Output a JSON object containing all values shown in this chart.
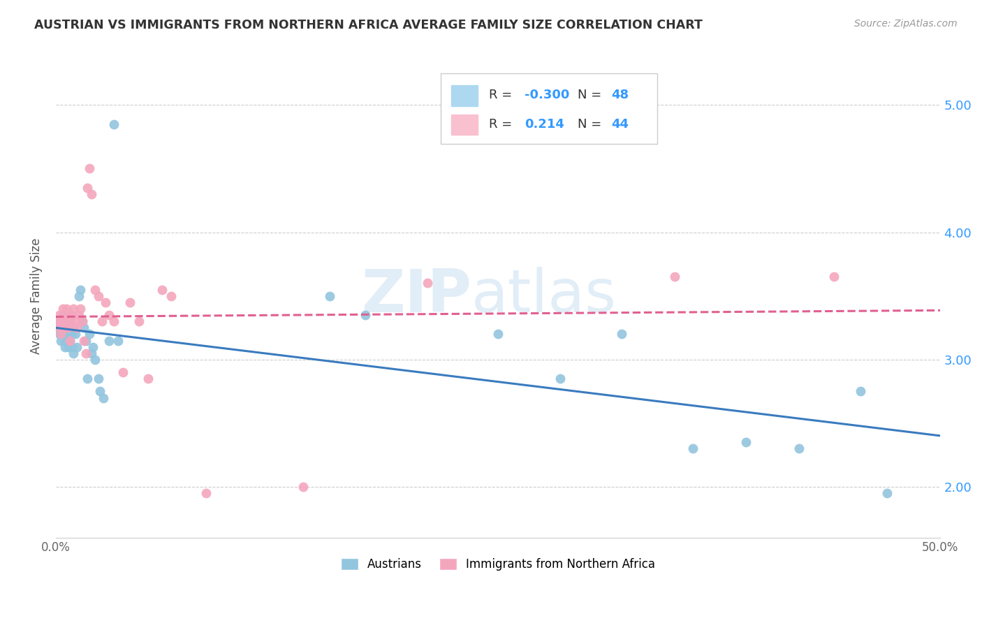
{
  "title": "AUSTRIAN VS IMMIGRANTS FROM NORTHERN AFRICA AVERAGE FAMILY SIZE CORRELATION CHART",
  "source": "Source: ZipAtlas.com",
  "ylabel": "Average Family Size",
  "xlim": [
    0.0,
    0.5
  ],
  "ylim": [
    1.6,
    5.4
  ],
  "yticks": [
    2.0,
    3.0,
    4.0,
    5.0
  ],
  "xticks": [
    0.0,
    0.1,
    0.2,
    0.3,
    0.4,
    0.5
  ],
  "xtick_labels": [
    "0.0%",
    "",
    "",
    "",
    "",
    "50.0%"
  ],
  "color_blue": "#92c5de",
  "color_pink": "#f4a6bd",
  "color_blue_line": "#3a7bbf",
  "color_pink_line": "#e06090",
  "watermark": "ZIPatlas",
  "austrians_x": [
    0.001,
    0.002,
    0.002,
    0.003,
    0.003,
    0.004,
    0.004,
    0.005,
    0.005,
    0.005,
    0.006,
    0.006,
    0.007,
    0.007,
    0.008,
    0.008,
    0.009,
    0.009,
    0.01,
    0.01,
    0.011,
    0.012,
    0.013,
    0.014,
    0.015,
    0.016,
    0.017,
    0.018,
    0.019,
    0.02,
    0.021,
    0.022,
    0.024,
    0.025,
    0.027,
    0.03,
    0.033,
    0.035,
    0.155,
    0.175,
    0.25,
    0.285,
    0.32,
    0.36,
    0.39,
    0.42,
    0.455,
    0.47
  ],
  "austrians_y": [
    3.25,
    3.3,
    3.2,
    3.25,
    3.15,
    3.35,
    3.2,
    3.3,
    3.15,
    3.1,
    3.3,
    3.2,
    3.25,
    3.1,
    3.3,
    3.15,
    3.2,
    3.1,
    3.25,
    3.05,
    3.2,
    3.1,
    3.5,
    3.55,
    3.3,
    3.25,
    3.15,
    2.85,
    3.2,
    3.05,
    3.1,
    3.0,
    2.85,
    2.75,
    2.7,
    3.15,
    4.85,
    3.15,
    3.5,
    3.35,
    3.2,
    2.85,
    3.2,
    2.3,
    2.35,
    2.3,
    2.75,
    1.95
  ],
  "immigrants_x": [
    0.001,
    0.002,
    0.002,
    0.003,
    0.003,
    0.004,
    0.004,
    0.005,
    0.005,
    0.006,
    0.006,
    0.007,
    0.007,
    0.008,
    0.008,
    0.009,
    0.01,
    0.011,
    0.012,
    0.013,
    0.014,
    0.015,
    0.016,
    0.017,
    0.018,
    0.019,
    0.02,
    0.022,
    0.024,
    0.026,
    0.028,
    0.03,
    0.033,
    0.038,
    0.042,
    0.047,
    0.052,
    0.06,
    0.065,
    0.085,
    0.14,
    0.21,
    0.35,
    0.44
  ],
  "immigrants_y": [
    3.3,
    3.35,
    3.25,
    3.3,
    3.2,
    3.4,
    3.3,
    3.35,
    3.25,
    3.4,
    3.3,
    3.25,
    3.35,
    3.3,
    3.15,
    3.35,
    3.4,
    3.3,
    3.25,
    3.35,
    3.4,
    3.3,
    3.15,
    3.05,
    4.35,
    4.5,
    4.3,
    3.55,
    3.5,
    3.3,
    3.45,
    3.35,
    3.3,
    2.9,
    3.45,
    3.3,
    2.85,
    3.55,
    3.5,
    1.95,
    2.0,
    3.6,
    3.65,
    3.65
  ]
}
